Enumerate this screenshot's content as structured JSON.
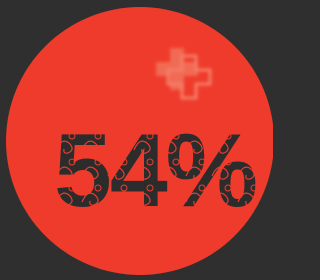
{
  "stat": {
    "label": "54%"
  }
}
